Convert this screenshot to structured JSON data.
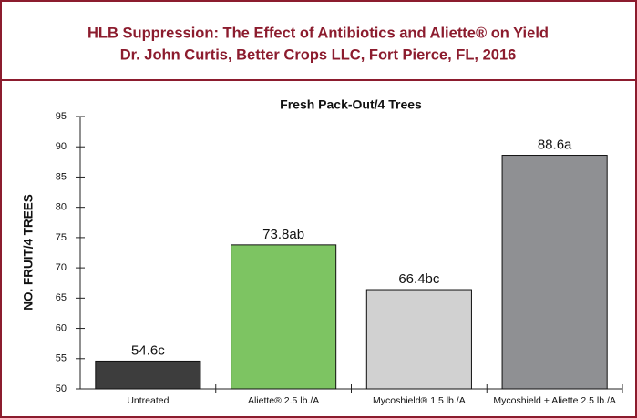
{
  "chart_data": {
    "type": "bar",
    "title": "HLB Suppression: The Effect of Antibiotics and Aliette® on Yield",
    "subtitle": "Dr. John Curtis, Better Crops LLC, Fort Pierce, FL, 2016",
    "chart_title": "Fresh Pack-Out/4 Trees",
    "y_label": "NO. FRUIT/4 TREES",
    "categories": [
      "Untreated",
      "Aliette® 2.5 lb./A",
      "Mycoshield® 1.5 lb./A",
      "Mycoshield + Aliette 2.5 lb./A"
    ],
    "values": [
      54.6,
      73.8,
      66.4,
      88.6
    ],
    "value_labels": [
      "54.6c",
      "73.8ab",
      "66.4bc",
      "88.6a"
    ],
    "colors": [
      "#3d3d3d",
      "#7dc462",
      "#d1d1d1",
      "#8f9093"
    ],
    "ylim": [
      50,
      95
    ],
    "yticks": [
      50,
      55,
      60,
      65,
      70,
      75,
      80,
      85,
      90,
      95
    ],
    "grid": false
  }
}
